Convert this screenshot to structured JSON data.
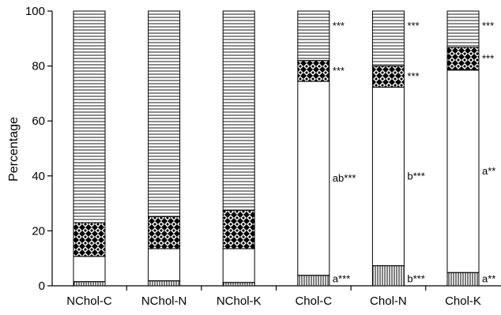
{
  "chart_data": {
    "type": "bar",
    "stacked": true,
    "ylabel": "Percentage",
    "xlabel": "",
    "ylim": [
      0,
      100
    ],
    "yticks": [
      "0",
      "20",
      "40",
      "60",
      "80",
      "100"
    ],
    "categories": [
      "NChol-C",
      "NChol-N",
      "NChol-K",
      "Chol-C",
      "Chol-N",
      "Chol-K"
    ],
    "grid": false,
    "series": [
      {
        "pattern": "vertical-lines",
        "values": [
          1.5,
          1.8,
          1.2,
          3.8,
          7.3,
          4.8
        ]
      },
      {
        "pattern": "blank",
        "values": [
          9.2,
          11.7,
          12.3,
          70.6,
          65.0,
          73.7
        ]
      },
      {
        "pattern": "checker",
        "values": [
          12.3,
          11.7,
          14.0,
          7.6,
          7.7,
          8.3
        ]
      },
      {
        "pattern": "horizontal-lines",
        "values": [
          77.0,
          74.8,
          72.5,
          18.0,
          20.0,
          13.2
        ]
      }
    ],
    "annotations": [
      {
        "category": "Chol-C",
        "level": "bottom",
        "text": "a***"
      },
      {
        "category": "Chol-C",
        "level": "middle",
        "text": "ab***"
      },
      {
        "category": "Chol-C",
        "level": "checker",
        "text": "***"
      },
      {
        "category": "Chol-C",
        "level": "top",
        "text": "***"
      },
      {
        "category": "Chol-N",
        "level": "bottom",
        "text": "b***"
      },
      {
        "category": "Chol-N",
        "level": "middle",
        "text": "b***"
      },
      {
        "category": "Chol-N",
        "level": "checker",
        "text": "***"
      },
      {
        "category": "Chol-N",
        "level": "top",
        "text": "***"
      },
      {
        "category": "Chol-K",
        "level": "bottom",
        "text": "a**"
      },
      {
        "category": "Chol-K",
        "level": "middle",
        "text": "a**"
      },
      {
        "category": "Chol-K",
        "level": "checker",
        "text": "***"
      },
      {
        "category": "Chol-K",
        "level": "top",
        "text": "***"
      }
    ]
  }
}
